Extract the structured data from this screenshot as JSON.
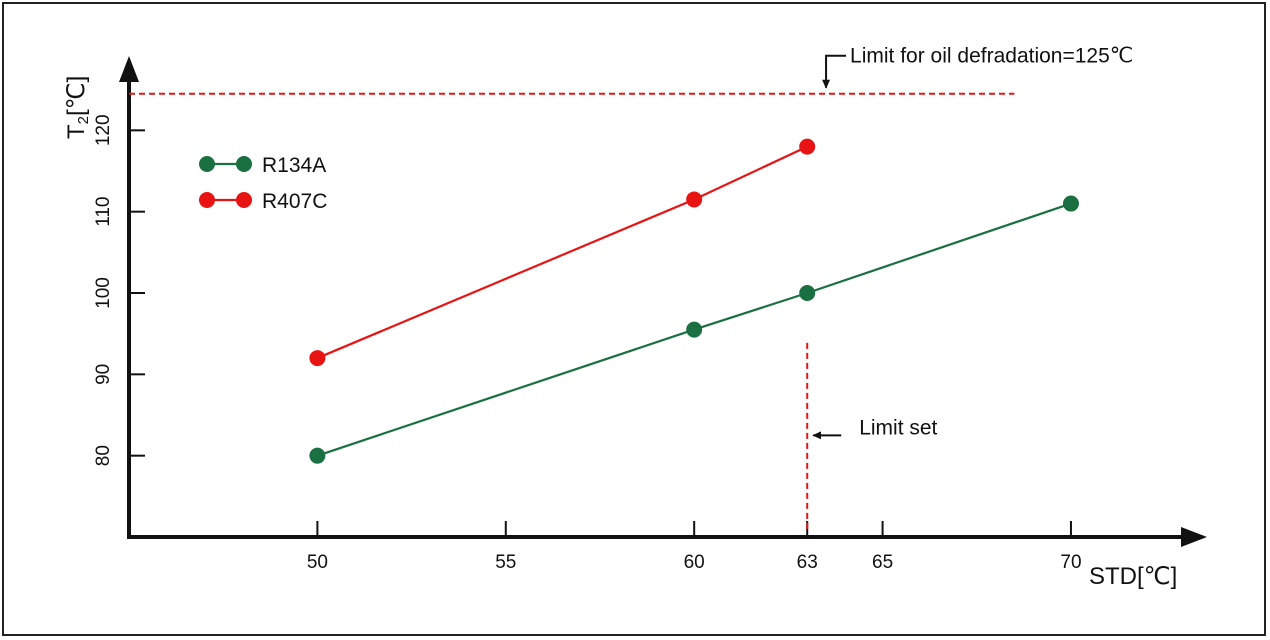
{
  "chart_data": {
    "type": "line",
    "title": "",
    "xlabel": "STD[℃]",
    "ylabel_main": "T",
    "ylabel_sub": "2",
    "ylabel_unit": "[℃]",
    "x_ticks": [
      50,
      55,
      60,
      63,
      65,
      70
    ],
    "y_ticks": [
      80,
      90,
      100,
      110,
      120
    ],
    "xlim": [
      45,
      73
    ],
    "ylim": [
      70,
      130
    ],
    "grid": false,
    "legend_position": "top-left",
    "series": [
      {
        "name": "R134A",
        "color": "#1a7040",
        "x": [
          50,
          60,
          63,
          70
        ],
        "y": [
          80,
          95.5,
          100,
          111
        ]
      },
      {
        "name": "R407C",
        "color": "#e81414",
        "x": [
          50,
          60,
          63
        ],
        "y": [
          92,
          111.5,
          118
        ]
      }
    ],
    "annotations": {
      "oil_limit": {
        "text": "Limit for oil defradation=125℃",
        "y": 124.5,
        "x_start": 45,
        "x_end": 68.5,
        "arrow_x": 63.5,
        "color": "#e81414"
      },
      "limit_set": {
        "text": "Limit set",
        "x": 63,
        "y_start": 71,
        "y_end": 94,
        "arrow_y": 82.5,
        "color": "#e81414"
      }
    }
  }
}
